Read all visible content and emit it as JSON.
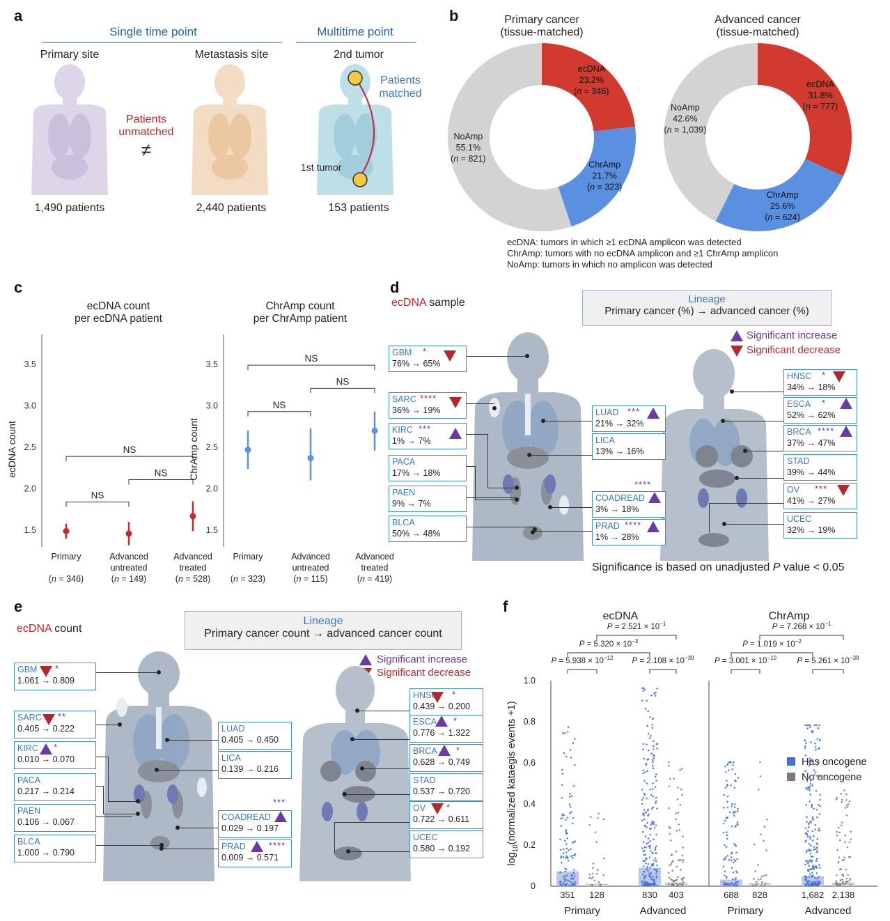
{
  "panel_labels": {
    "a": "a",
    "b": "b",
    "c": "c",
    "d": "d",
    "e": "e",
    "f": "f"
  },
  "panel_a": {
    "single_time_point": "Single time point",
    "multitime_point": "Multitime point",
    "primary_site": "Primary site",
    "metastasis_site": "Metastasis site",
    "second_tumor": "2nd tumor",
    "first_tumor": "1st tumor",
    "patients_unmatched_1": "Patients",
    "patients_unmatched_2": "unmatched",
    "patients_matched_1": "Patients",
    "patients_matched_2": "matched",
    "not_equal": "≠",
    "primary_count": "1,490 patients",
    "metastasis_count": "2,440 patients",
    "multitime_count": "153 patients",
    "colors": {
      "primary_body": "#d8d3e6",
      "metastasis_body": "#f1d3b6",
      "multitime_body": "#b8d9e3",
      "tumor": "#f5c842",
      "arrow": "#c0304a"
    }
  },
  "panel_b": {
    "note_ecdna": "ecDNA: tumors in which ≥1 ecDNA amplicon was detected",
    "note_chramp": "ChrAmp: tumors with no ecDNA amplicon and ≥1 ChrAmp amplicon",
    "note_noamp": "NoAmp: tumors in which no amplicon was detected",
    "colors": {
      "ecDNA": "#d03a2f",
      "ChrAmp": "#5b8fe0",
      "NoAmp": "#d3d3d3"
    }
  },
  "panel_c": {},
  "panel_d": {
    "title_red": "ecDNA",
    "title_rest": " sample",
    "legend_title": "Lineage",
    "legend_sub": "Primary cancer (%) → advanced cancer (%)",
    "sig_increase": "Significant increase",
    "sig_decrease": "Significant decrease",
    "footnote_pre": "Significance is based on unadjusted ",
    "footnote_p": "P",
    "footnote_post": " value < 0.05",
    "boxes": [
      {
        "name": "GBM",
        "val": "76% → 65%",
        "stars": "*",
        "sig": "down"
      },
      {
        "name": "SARC",
        "val": "36% → 19%",
        "stars": "****",
        "sig": "down"
      },
      {
        "name": "KIRC",
        "val": "1% → 7%",
        "stars": "***",
        "sig": "up"
      },
      {
        "name": "PACA",
        "val": "17% → 18%",
        "stars": "",
        "sig": ""
      },
      {
        "name": "PAEN",
        "val": "9% → 7%",
        "stars": "",
        "sig": ""
      },
      {
        "name": "BLCA",
        "val": "50% → 48%",
        "stars": "",
        "sig": ""
      },
      {
        "name": "LUAD",
        "val": "21% → 32%",
        "stars": "***",
        "sig": "up"
      },
      {
        "name": "LICA",
        "val": "13% → 16%",
        "stars": "",
        "sig": ""
      },
      {
        "name": "COADREAD",
        "val": "3% → 18%",
        "stars": "****",
        "sig": "up"
      },
      {
        "name": "PRAD",
        "val": "1% → 28%",
        "stars": "****",
        "sig": "up"
      },
      {
        "name": "HNSC",
        "val": "34% → 18%",
        "stars": "*",
        "sig": "down"
      },
      {
        "name": "ESCA",
        "val": "52% → 62%",
        "stars": "*",
        "sig": "up"
      },
      {
        "name": "BRCA",
        "val": "37% → 47%",
        "stars": "****",
        "sig": "up"
      },
      {
        "name": "STAD",
        "val": "39% → 44%",
        "stars": "",
        "sig": ""
      },
      {
        "name": "OV",
        "val": "41% → 27%",
        "stars": "***",
        "sig": "down"
      },
      {
        "name": "UCEC",
        "val": "32% → 19%",
        "stars": "",
        "sig": ""
      }
    ]
  },
  "panel_e": {
    "title_red": "ecDNA",
    "title_rest": " count",
    "legend_title": "Lineage",
    "legend_sub": "Primary cancer count → advanced cancer count",
    "sig_increase": "Significant increase",
    "sig_decrease": "Significant decrease",
    "boxes": [
      {
        "name": "GBM",
        "val": "1.061 → 0.809",
        "stars": "*",
        "sig": "down"
      },
      {
        "name": "SARC",
        "val": "0.405 → 0.222",
        "stars": "**",
        "sig": "down"
      },
      {
        "name": "KIRC",
        "val": "0.010 → 0.070",
        "stars": "*",
        "sig": "up"
      },
      {
        "name": "PACA",
        "val": "0.217 → 0.214",
        "stars": "",
        "sig": ""
      },
      {
        "name": "PAEN",
        "val": "0.106 → 0.067",
        "stars": "",
        "sig": ""
      },
      {
        "name": "BLCA",
        "val": "1.000 → 0.790",
        "stars": "",
        "sig": ""
      },
      {
        "name": "LUAD",
        "val": "0.405 → 0.450",
        "stars": "",
        "sig": ""
      },
      {
        "name": "LICA",
        "val": "0.139 → 0.216",
        "stars": "",
        "sig": ""
      },
      {
        "name": "COADREAD",
        "val": "0.029 → 0.197",
        "stars": "***",
        "sig": "up"
      },
      {
        "name": "PRAD",
        "val": "0.009 → 0.571",
        "stars": "****",
        "sig": "up"
      },
      {
        "name": "HNSC",
        "val": "0.439 → 0.200",
        "stars": "*",
        "sig": "down"
      },
      {
        "name": "ESCA",
        "val": "0.776 → 1.322",
        "stars": "*",
        "sig": "up"
      },
      {
        "name": "BRCA",
        "val": "0.628 → 0.749",
        "stars": "*",
        "sig": "up"
      },
      {
        "name": "STAD",
        "val": "0.537 → 0.720",
        "stars": "",
        "sig": ""
      },
      {
        "name": "OV",
        "val": "0.722 → 0.611",
        "stars": "*",
        "sig": "down"
      },
      {
        "name": "UCEC",
        "val": "0.580 → 0.192",
        "stars": "",
        "sig": ""
      }
    ]
  },
  "panel_f": {},
  "chart_data": [
    {
      "type": "pie",
      "panel": "b-left",
      "title": "Primary cancer\n(tissue-matched)",
      "slices": [
        {
          "label": "ecDNA",
          "percent": "23.2%",
          "n": "346",
          "value": 23.2
        },
        {
          "label": "ChrAmp",
          "percent": "21.7%",
          "n": "323",
          "value": 21.7
        },
        {
          "label": "NoAmp",
          "percent": "55.1%",
          "n": "821",
          "value": 55.1
        }
      ]
    },
    {
      "type": "pie",
      "panel": "b-right",
      "title": "Advanced cancer\n(tissue-matched)",
      "slices": [
        {
          "label": "ecDNA",
          "percent": "31.8%",
          "n": "777",
          "value": 31.8
        },
        {
          "label": "ChrAmp",
          "percent": "25.6%",
          "n": "624",
          "value": 25.6
        },
        {
          "label": "NoAmp",
          "percent": "42.6%",
          "n": "1,039",
          "value": 42.6
        }
      ]
    },
    {
      "type": "scatter",
      "panel": "c-left",
      "title": "ecDNA count\nper ecDNA patient",
      "ylabel": "ecDNA count",
      "ylim": [
        1.3,
        3.65
      ],
      "yticks": [
        "1.5",
        "2.0",
        "2.5",
        "3.0",
        "3.5"
      ],
      "categories": [
        {
          "line1": "Primary",
          "line2": "",
          "n": "346"
        },
        {
          "line1": "Advanced",
          "line2": "untreated",
          "n": "149"
        },
        {
          "line1": "Advanced",
          "line2": "treated",
          "n": "528"
        }
      ],
      "means": [
        1.49,
        1.46,
        1.67
      ],
      "ci_low": [
        1.4,
        1.32,
        1.49
      ],
      "ci_high": [
        1.58,
        1.6,
        1.85
      ],
      "color": "#c62a2a",
      "brackets": [
        {
          "from": 0,
          "to": 1,
          "label": "NS",
          "y": 1.84
        },
        {
          "from": 1,
          "to": 2,
          "label": "NS",
          "y": 2.11
        },
        {
          "from": 0,
          "to": 2,
          "label": "NS",
          "y": 2.39
        }
      ]
    },
    {
      "type": "scatter",
      "panel": "c-right",
      "title": "ChrAmp count\nper ChrAmp patient",
      "ylabel": "ChrAmp count",
      "ylim": [
        1.3,
        3.65
      ],
      "yticks": [
        "1.5",
        "2.0",
        "2.5",
        "3.0",
        "3.5"
      ],
      "categories": [
        {
          "line1": "Primary",
          "line2": "",
          "n": "323"
        },
        {
          "line1": "Advanced",
          "line2": "untreated",
          "n": "115"
        },
        {
          "line1": "Advanced",
          "line2": "treated",
          "n": "419"
        }
      ],
      "means": [
        2.47,
        2.37,
        2.7
      ],
      "ci_low": [
        2.24,
        2.1,
        2.46
      ],
      "ci_high": [
        2.7,
        2.73,
        2.93
      ],
      "color": "#5b8fe0",
      "brackets": [
        {
          "from": 0,
          "to": 1,
          "label": "NS",
          "y": 2.93
        },
        {
          "from": 1,
          "to": 2,
          "label": "NS",
          "y": 3.21
        },
        {
          "from": 0,
          "to": 2,
          "label": "NS",
          "y": 3.49
        }
      ]
    },
    {
      "type": "scatter",
      "panel": "f",
      "ylabel": "log10(normalized kataegis events +1)",
      "ylim": [
        0,
        1.0
      ],
      "yticks": [
        "0",
        "0.2",
        "0.4",
        "0.6",
        "0.8",
        "1.0"
      ],
      "legend": [
        {
          "name": "Has oncogene",
          "color": "#3f6fd9"
        },
        {
          "name": "No oncogene",
          "color": "#7a7a7a"
        }
      ],
      "groups": [
        {
          "title": "ecDNA",
          "columns": [
            {
              "n": "351",
              "kind": "has",
              "mean": 0.072,
              "max": 0.78
            },
            {
              "n": "128",
              "kind": "no",
              "mean": 0.012,
              "max": 0.4
            },
            {
              "n": "830",
              "kind": "has",
              "mean": 0.09,
              "max": 0.96
            },
            {
              "n": "403",
              "kind": "no",
              "mean": 0.018,
              "max": 0.6
            }
          ],
          "xlabels": [
            "Primary",
            "Advanced"
          ],
          "pvals": [
            {
              "cols": [
                0,
                1
              ],
              "text": "P = 5.938 × 10",
              "exp": "−12"
            },
            {
              "cols": [
                2,
                3
              ],
              "text": "P = 2.108 × 10",
              "exp": "−39"
            },
            {
              "cols": [
                0,
                2
              ],
              "text": "P = 5.320 × 10",
              "exp": "−3"
            },
            {
              "cols": [
                1,
                3
              ],
              "text": "P = 2.521 × 10",
              "exp": "−1"
            }
          ]
        },
        {
          "title": "ChrAmp",
          "columns": [
            {
              "n": "688",
              "kind": "has",
              "mean": 0.032,
              "max": 0.6
            },
            {
              "n": "828",
              "kind": "no",
              "mean": 0.015,
              "max": 0.6
            },
            {
              "n": "1,682",
              "kind": "has",
              "mean": 0.048,
              "max": 0.78
            },
            {
              "n": "2,138",
              "kind": "no",
              "mean": 0.018,
              "max": 0.6
            }
          ],
          "xlabels": [
            "Primary",
            "Advanced"
          ],
          "pvals": [
            {
              "cols": [
                0,
                1
              ],
              "text": "P = 3.001 × 10",
              "exp": "−10"
            },
            {
              "cols": [
                2,
                3
              ],
              "text": "P = 5.261 × 10",
              "exp": "−39"
            },
            {
              "cols": [
                0,
                2
              ],
              "text": "P = 1.019 × 10",
              "exp": "−2"
            },
            {
              "cols": [
                1,
                3
              ],
              "text": "P = 7.268 × 10",
              "exp": "−1"
            }
          ]
        }
      ]
    }
  ]
}
